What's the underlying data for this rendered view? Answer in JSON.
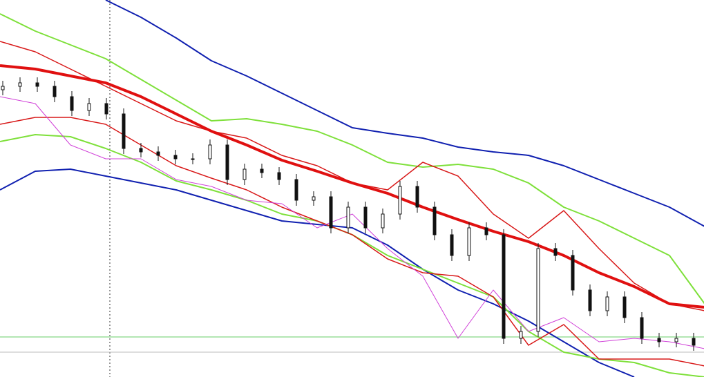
{
  "chart_data": [
    {
      "type": "line",
      "categories": [
        null,
        null,
        null,
        null,
        null,
        null,
        null,
        null,
        null,
        null,
        null,
        null,
        null,
        null,
        null,
        null,
        null,
        null,
        null,
        null,
        null
      ],
      "ylim": [
        0,
        546
      ],
      "series": [
        {
          "color": "#1020b0",
          "width": 2,
          "values": [
            null,
            null,
            null,
            546,
            521,
            491,
            458,
            436,
            411,
            386,
            361,
            353,
            346,
            333,
            326,
            321,
            306,
            286,
            266,
            246,
            218
          ]
        },
        {
          "color": "#1020b0",
          "width": 2,
          "values": [
            271,
            298,
            301,
            291,
            281,
            271,
            256,
            241,
            226,
            221,
            216,
            191,
            156,
            126,
            106,
            81,
            51,
            21,
            0,
            null,
            null
          ]
        },
        {
          "color": "#7ee03a",
          "width": 2,
          "values": [
            526,
            501,
            481,
            461,
            431,
            401,
            371,
            374,
            366,
            356,
            336,
            311,
            304,
            308,
            301,
            281,
            246,
            226,
            201,
            176,
            106
          ]
        },
        {
          "color": "#7ee03a",
          "width": 2,
          "values": [
            341,
            351,
            348,
            331,
            311,
            284,
            271,
            256,
            236,
            226,
            206,
            176,
            156,
            136,
            116,
            66,
            36,
            26,
            21,
            6,
            0
          ]
        },
        {
          "color": "#d81818",
          "width": 1.5,
          "values": [
            486,
            471,
            446,
            421,
            396,
            371,
            356,
            346,
            321,
            306,
            281,
            271,
            311,
            291,
            236,
            201,
            241,
            186,
            136,
            106,
            96
          ]
        },
        {
          "color": "#d81818",
          "width": 1.5,
          "values": [
            366,
            376,
            376,
            366,
            336,
            306,
            288,
            271,
            246,
            226,
            206,
            171,
            151,
            146,
            116,
            46,
            76,
            26,
            26,
            26,
            16
          ]
        },
        {
          "color": "#e01010",
          "width": 4,
          "values": [
            451,
            446,
            436,
            426,
            406,
            381,
            356,
            336,
            314,
            298,
            281,
            266,
            246,
            228,
            211,
            196,
            176,
            151,
            131,
            106,
            101
          ]
        },
        {
          "color": "#d040d8",
          "width": 1,
          "values": [
            406,
            396,
            336,
            316,
            316,
            286,
            276,
            256,
            251,
            216,
            236,
            186,
            146,
            56,
            126,
            66,
            86,
            51,
            56,
            51,
            41
          ]
        }
      ],
      "levels": [
        {
          "color": "#66cc66",
          "value": 58
        },
        {
          "color": "#bbbbbb",
          "value": 36
        }
      ]
    },
    {
      "type": "candlestick",
      "categories": [
        null,
        null,
        null,
        null,
        null,
        null,
        null,
        null,
        null,
        null,
        null,
        null,
        null,
        null,
        null,
        null,
        null,
        null,
        null,
        null,
        null,
        null,
        null,
        null,
        null,
        null,
        null,
        null,
        null,
        null,
        null,
        null,
        null,
        null,
        null,
        null,
        null,
        null,
        null,
        null,
        null
      ],
      "ylim": [
        0,
        546
      ],
      "color": "#111111",
      "open": [
        416,
        421,
        426,
        421,
        406,
        386,
        396,
        381,
        331,
        326,
        321,
        316,
        316,
        336,
        286,
        301,
        296,
        286,
        256,
        261,
        216,
        246,
        216,
        236,
        276,
        246,
        206,
        176,
        216,
        206,
        56,
        66,
        186,
        176,
        126,
        96,
        116,
        86,
        56,
        51,
        56
      ],
      "high": [
        429,
        434,
        434,
        429,
        414,
        404,
        404,
        389,
        339,
        334,
        329,
        324,
        344,
        344,
        309,
        309,
        304,
        294,
        269,
        269,
        254,
        254,
        244,
        284,
        284,
        254,
        214,
        224,
        224,
        214,
        74,
        194,
        194,
        184,
        134,
        124,
        124,
        94,
        64,
        64,
        64
      ],
      "low": [
        408,
        413,
        413,
        398,
        378,
        378,
        373,
        323,
        318,
        313,
        308,
        308,
        308,
        278,
        278,
        288,
        278,
        248,
        248,
        208,
        208,
        208,
        208,
        228,
        238,
        198,
        168,
        168,
        198,
        48,
        48,
        58,
        168,
        118,
        88,
        88,
        78,
        48,
        43,
        43,
        38
      ],
      "close": [
        421,
        426,
        421,
        406,
        386,
        396,
        381,
        331,
        326,
        321,
        316,
        316,
        336,
        286,
        301,
        296,
        286,
        256,
        261,
        216,
        246,
        216,
        236,
        276,
        246,
        206,
        176,
        216,
        206,
        56,
        66,
        186,
        176,
        126,
        96,
        116,
        86,
        56,
        51,
        56,
        46
      ]
    }
  ]
}
